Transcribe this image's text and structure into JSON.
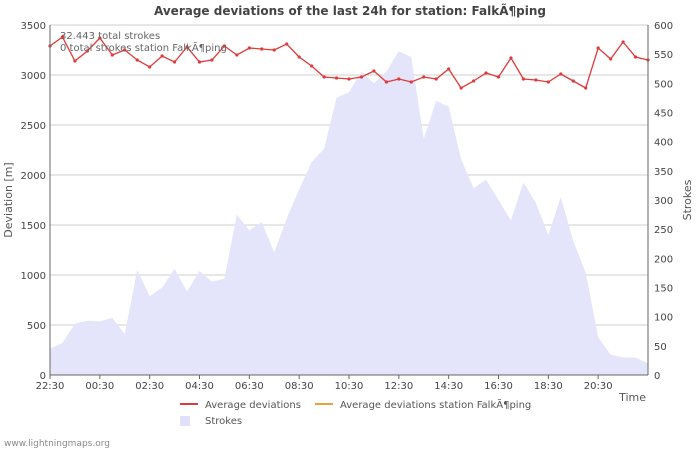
{
  "chart_data": {
    "type": "line",
    "title": "Average deviations of the last 24h for station: FalkÃ¶ping",
    "xlabel": "Time",
    "ylabel": "Deviation  [m]",
    "y2label": "Strokes",
    "ylim": [
      0,
      3500
    ],
    "y2lim": [
      0,
      600
    ],
    "yticks": [
      0,
      500,
      1000,
      1500,
      2000,
      2500,
      3000,
      3500
    ],
    "y2ticks": [
      0,
      50,
      100,
      150,
      200,
      250,
      300,
      350,
      400,
      450,
      500,
      550,
      600
    ],
    "xticks": [
      "22:30",
      "00:30",
      "02:30",
      "04:30",
      "06:30",
      "08:30",
      "10:30",
      "12:30",
      "14:30",
      "16:30",
      "18:30",
      "20:30"
    ],
    "info_lines": [
      "32.443 total strokes",
      "0 total strokes station FalkÃ¶ping"
    ],
    "legend": [
      {
        "label": "Average deviations",
        "color": "#e03a3a",
        "kind": "line"
      },
      {
        "label": "Average deviations station FalkÃ¶ping",
        "color": "#f0a040",
        "kind": "line"
      },
      {
        "label": "Strokes",
        "color": "#e0e0fa",
        "kind": "area"
      }
    ],
    "grid": true,
    "series": [
      {
        "name": "Average deviations",
        "axis": "left",
        "x": [
          0,
          0.5,
          1,
          1.5,
          2,
          2.5,
          3,
          3.5,
          4,
          4.5,
          5,
          5.5,
          6,
          6.5,
          7,
          7.5,
          8,
          8.5,
          9,
          9.5,
          10,
          10.5,
          11,
          11.5,
          12,
          12.5,
          13,
          13.5,
          14,
          14.5,
          15,
          15.5,
          16,
          16.5,
          17,
          17.5,
          18,
          18.5,
          19,
          19.5,
          20,
          20.5,
          21,
          21.5,
          22,
          22.5,
          23,
          23.5,
          24
        ],
        "values": [
          3290,
          3380,
          3140,
          3240,
          3370,
          3200,
          3250,
          3150,
          3080,
          3190,
          3130,
          3280,
          3130,
          3150,
          3290,
          3200,
          3270,
          3260,
          3250,
          3310,
          3180,
          3090,
          2980,
          2970,
          2960,
          2980,
          3040,
          2930,
          2960,
          2930,
          2980,
          2960,
          3060,
          2870,
          2940,
          3020,
          2980,
          3170,
          2960,
          2950,
          2930,
          3010,
          2940,
          2870,
          3270,
          3160,
          3330,
          3180,
          3150
        ]
      },
      {
        "name": "Average deviations station FalkÃ¶ping",
        "axis": "left",
        "x": [],
        "values": []
      },
      {
        "name": "Strokes",
        "axis": "right",
        "x": [
          0,
          0.5,
          1,
          1.5,
          2,
          2.5,
          3,
          3.5,
          4,
          4.5,
          5,
          5.5,
          6,
          6.5,
          7,
          7.5,
          8,
          8.5,
          9,
          9.5,
          10,
          10.5,
          11,
          11.5,
          12,
          12.5,
          13,
          13.5,
          14,
          14.5,
          15,
          15.5,
          16,
          16.5,
          17,
          17.5,
          18,
          18.5,
          19,
          19.5,
          20,
          20.5,
          21,
          21.5,
          22,
          22.5,
          23,
          23.5,
          24
        ],
        "values": [
          45,
          55,
          88,
          93,
          92,
          98,
          70,
          180,
          135,
          150,
          182,
          143,
          178,
          160,
          165,
          275,
          248,
          262,
          210,
          268,
          318,
          365,
          388,
          475,
          485,
          520,
          500,
          520,
          555,
          545,
          405,
          470,
          460,
          370,
          320,
          335,
          300,
          265,
          330,
          295,
          240,
          305,
          230,
          175,
          65,
          35,
          30,
          30,
          20
        ]
      }
    ]
  },
  "footer": {
    "site": "www.lightningmaps.org"
  }
}
